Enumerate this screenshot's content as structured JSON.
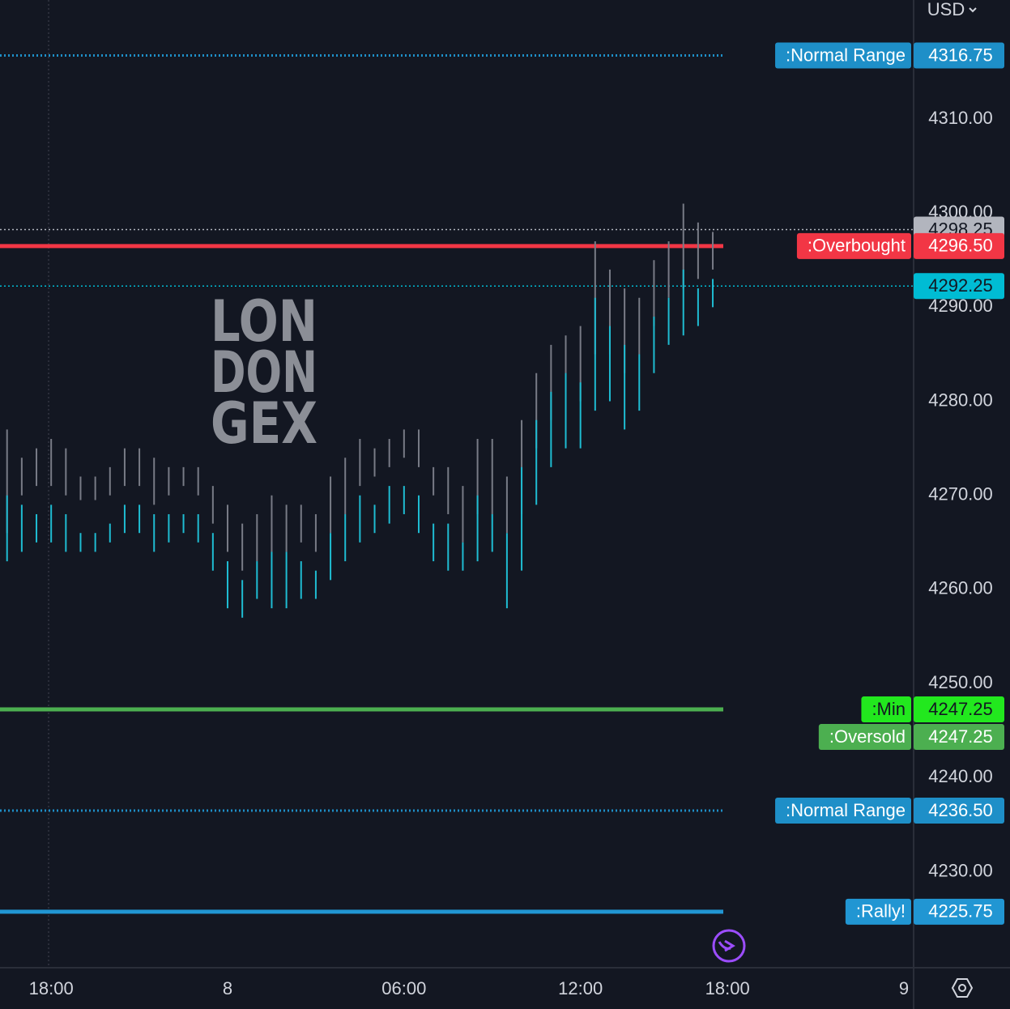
{
  "chart_data": {
    "type": "ohlc",
    "currency": "USD",
    "watermark": [
      "LON",
      "DON",
      "GEX"
    ],
    "xlim": [
      -1.74,
      29.33
    ],
    "ylim": [
      4219.8,
      4322.65
    ],
    "xticks": [
      {
        "value": 0,
        "label": "18:00"
      },
      {
        "value": 6,
        "label": "8"
      },
      {
        "value": 12,
        "label": "06:00"
      },
      {
        "value": 18,
        "label": "12:00"
      },
      {
        "value": 23,
        "label": "18:00"
      },
      {
        "value": 29,
        "label": "9"
      }
    ],
    "yticks": [
      {
        "value": 4230,
        "label": "4230.00"
      },
      {
        "value": 4240,
        "label": "4240.00"
      },
      {
        "value": 4250,
        "label": "4250.00"
      },
      {
        "value": 4260,
        "label": "4260.00"
      },
      {
        "value": 4270,
        "label": "4270.00"
      },
      {
        "value": 4280,
        "label": "4280.00"
      },
      {
        "value": 4290,
        "label": "4290.00"
      },
      {
        "value": 4300,
        "label": "4300.00"
      },
      {
        "value": 4310,
        "label": "4310.00"
      }
    ],
    "x": [
      -1.5,
      -1,
      -0.5,
      0,
      0.5,
      1,
      1.5,
      2,
      2.5,
      3,
      3.5,
      4,
      4.5,
      5,
      5.5,
      6,
      6.5,
      7,
      7.5,
      8,
      8.5,
      9,
      9.5,
      10,
      10.5,
      11,
      11.5,
      12,
      12.5,
      13,
      13.5,
      14,
      14.5,
      15,
      15.5,
      16,
      16.5,
      17,
      17.5,
      18,
      18.5,
      19,
      19.5,
      20,
      20.5,
      21,
      21.5,
      22,
      22.5
    ],
    "series": [
      {
        "color": "#787b86",
        "high": [
          4277,
          4274,
          4275,
          4276,
          4275,
          4272,
          4272,
          4273,
          4275,
          4275,
          4274,
          4273,
          4273,
          4273,
          4271,
          4269,
          4267,
          4268,
          4270,
          4269,
          4269,
          4268,
          4272,
          4274,
          4276,
          4275,
          4276,
          4277,
          4277,
          4273,
          4273,
          4271,
          4276,
          4276,
          4272,
          4278,
          4283,
          4286,
          4287,
          4288,
          4297,
          4294,
          4292,
          4291,
          4295,
          4297,
          4301,
          4299,
          4298
        ],
        "low": [
          4266,
          4270,
          4271,
          4271,
          4270,
          4269.5,
          4269.5,
          4270,
          4271,
          4271,
          4269,
          4270,
          4271,
          4270,
          4267,
          4264,
          4262,
          4263,
          4264,
          4264,
          4265,
          4264,
          4266,
          4268,
          4271,
          4272,
          4273,
          4274,
          4273,
          4270,
          4268,
          4265,
          4268,
          4268,
          4266,
          4268,
          4275,
          4278,
          4281,
          4280,
          4285,
          4285,
          4283,
          4285,
          4288,
          4291,
          4292,
          4293,
          4294
        ]
      },
      {
        "color": "#1fbcd2",
        "high": [
          4270,
          4269,
          4268,
          4269,
          4268,
          4266,
          4266,
          4267,
          4269,
          4269,
          4268,
          4268,
          4268,
          4268,
          4266,
          4263,
          4261,
          4263,
          4264,
          4264,
          4263,
          4262,
          4266,
          4268,
          4270,
          4269,
          4271,
          4271,
          4270,
          4267,
          4267,
          4265,
          4270,
          4268,
          4266,
          4273,
          4278,
          4281,
          4283,
          4282,
          4291,
          4288,
          4286,
          4285,
          4289,
          4291,
          4294,
          4292,
          4293
        ],
        "low": [
          4263,
          4264,
          4265,
          4265,
          4264,
          4264,
          4264,
          4265,
          4266,
          4266,
          4264,
          4265,
          4266,
          4265,
          4262,
          4258,
          4257,
          4259,
          4258,
          4258,
          4259,
          4259,
          4261,
          4263,
          4265,
          4266,
          4267,
          4268,
          4266,
          4263,
          4262,
          4262,
          4263,
          4264,
          4258,
          4262,
          4269,
          4273,
          4275,
          4275,
          4279,
          4280,
          4277,
          4279,
          4283,
          4286,
          4287,
          4288,
          4290
        ]
      }
    ],
    "last_prices": [
      {
        "value": 4298.25,
        "color": "#b2b5be"
      },
      {
        "value": 4292.25,
        "color": "#00bcd4"
      }
    ],
    "levels": [
      {
        "label": ":Normal Range",
        "value": 4316.75,
        "color": "#1e8fc8",
        "style": "dotted"
      },
      {
        "label": ":Overbought",
        "value": 4296.5,
        "value_label": "4296.50",
        "color": "#f23645",
        "style": "solid"
      },
      {
        "label": ":Min",
        "value": 4247.25,
        "color": "#22e81e",
        "style": "solid"
      },
      {
        "label": ":Oversold",
        "value": 4247.25,
        "color": "#4caf50",
        "style": "solid"
      },
      {
        "label": ":Normal Range",
        "value": 4236.5,
        "value_label": "4236.50",
        "color": "#1e8fc8",
        "style": "dotted"
      },
      {
        "label": ":Rally!",
        "value": 4225.75,
        "color": "#2196d3",
        "style": "solid"
      }
    ]
  }
}
